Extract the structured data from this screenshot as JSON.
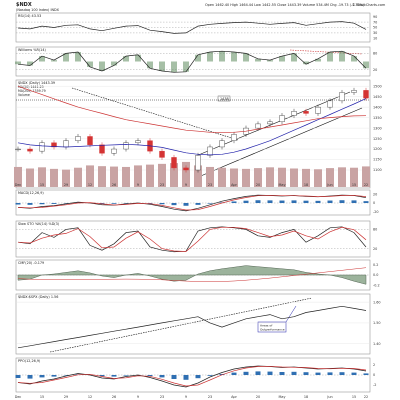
{
  "header": {
    "symbol": "$NDX",
    "descriptor": "(Nasdaq 100 Index) INDX",
    "stats": "Open 1462.40  High 1464.44  Low 1442.55  Close 1443.39  Volume 534.4M  Chg -19.73 (-1.35%)",
    "watermark": "© StockCharts.com"
  },
  "panels": {
    "rsi_label": "RSI(14) 43.53",
    "willr_label": "Williams %R(14)",
    "price_label": "$NDX (Daily) 1443.39",
    "ma_labels": [
      "MA(50) 1441.25",
      "MA(200) 1359.79"
    ],
    "volume_label": "Volume",
    "macd_label": "MACD(12,26,9)",
    "stoch_label": "Slow STO %K(14) %D(3)",
    "cmf_label": "CMF(20) -0.179",
    "ratio_label": "$NDX:$SPX (Daily) 1.56",
    "ppo_label": "PPO(12,26,9)",
    "annotation": "Areas of Outperformance",
    "price_marker": "1438"
  },
  "axes": {
    "x_ticks": [
      "Dec",
      "8",
      "15",
      "22",
      "29",
      "2009",
      "12",
      "20",
      "26",
      "Feb",
      "9",
      "17",
      "23",
      "Mar",
      "9",
      "16",
      "23",
      "30",
      "Apr",
      "13",
      "20",
      "27",
      "May",
      "11",
      "18",
      "26",
      "Jun",
      "8",
      "15",
      "22"
    ],
    "price_ticks": [
      "1500",
      "1450",
      "1400",
      "1350",
      "1300",
      "1250",
      "1200",
      "1150",
      "1100"
    ],
    "rsi_ticks": [
      "90",
      "70",
      "50",
      "30",
      "10"
    ],
    "osc_ticks": [
      "80",
      "20"
    ],
    "macd_ticks": [
      "20",
      "0",
      "-20"
    ],
    "cmf_ticks": [
      "0.2",
      "0.0",
      "-0.2"
    ],
    "ratio_ticks": [
      "1.60",
      "1.50",
      "1.40"
    ],
    "ppo_ticks": [
      "2",
      "0",
      "-2"
    ]
  },
  "chart_data": {
    "type": "line",
    "x": [
      "Dec",
      "8",
      "15",
      "22",
      "29",
      "2009",
      "12",
      "20",
      "26",
      "Feb",
      "9",
      "17",
      "23",
      "Mar",
      "9",
      "16",
      "23",
      "30",
      "Apr",
      "13",
      "20",
      "27",
      "May",
      "11",
      "18",
      "26",
      "Jun",
      "8",
      "15",
      "22"
    ],
    "series": [
      {
        "name": "$NDX",
        "values": [
          1200,
          1190,
          1230,
          1210,
          1240,
          1260,
          1220,
          1180,
          1200,
          1230,
          1240,
          1190,
          1160,
          1110,
          1100,
          1170,
          1210,
          1240,
          1270,
          1300,
          1320,
          1330,
          1360,
          1380,
          1370,
          1400,
          1430,
          1470,
          1480,
          1443
        ]
      },
      {
        "name": "MA(50)",
        "values": [
          1230,
          1220,
          1215,
          1212,
          1210,
          1212,
          1215,
          1218,
          1220,
          1222,
          1220,
          1215,
          1208,
          1195,
          1182,
          1175,
          1172,
          1175,
          1185,
          1200,
          1220,
          1240,
          1265,
          1290,
          1315,
          1340,
          1365,
          1390,
          1415,
          1441
        ]
      },
      {
        "name": "MA(200)",
        "values": [
          1500,
          1480,
          1460,
          1440,
          1420,
          1400,
          1385,
          1370,
          1355,
          1340,
          1330,
          1320,
          1310,
          1300,
          1290,
          1285,
          1280,
          1278,
          1280,
          1285,
          1295,
          1305,
          1315,
          1325,
          1335,
          1345,
          1350,
          1355,
          1358,
          1359
        ]
      },
      {
        "name": "RSI(14)",
        "values": [
          48,
          45,
          55,
          50,
          58,
          60,
          45,
          38,
          47,
          55,
          57,
          40,
          35,
          28,
          30,
          55,
          62,
          65,
          68,
          70,
          66,
          62,
          65,
          68,
          58,
          64,
          70,
          72,
          66,
          43
        ]
      },
      {
        "name": "$NDX:$SPX",
        "values": [
          1.38,
          1.39,
          1.4,
          1.41,
          1.42,
          1.43,
          1.44,
          1.45,
          1.46,
          1.47,
          1.48,
          1.49,
          1.5,
          1.51,
          1.52,
          1.53,
          1.5,
          1.48,
          1.5,
          1.52,
          1.53,
          1.54,
          1.52,
          1.53,
          1.55,
          1.56,
          1.57,
          1.58,
          1.57,
          1.56
        ]
      },
      {
        "name": "Volume",
        "values": [
          520,
          480,
          510,
          470,
          450,
          500,
          560,
          540,
          530,
          520,
          560,
          580,
          600,
          620,
          650,
          560,
          520,
          500,
          480,
          470,
          490,
          510,
          500,
          480,
          470,
          460,
          490,
          510,
          500,
          534
        ]
      },
      {
        "name": "Slow %K",
        "values": [
          40,
          35,
          70,
          55,
          80,
          85,
          30,
          15,
          35,
          70,
          75,
          25,
          15,
          10,
          12,
          75,
          85,
          88,
          85,
          80,
          60,
          55,
          70,
          80,
          40,
          60,
          85,
          88,
          70,
          25
        ]
      },
      {
        "name": "MACD",
        "values": [
          -10,
          -12,
          -8,
          -6,
          -2,
          2,
          0,
          -4,
          -5,
          -2,
          0,
          -3,
          -8,
          -14,
          -18,
          -12,
          -4,
          4,
          10,
          15,
          18,
          17,
          16,
          17,
          15,
          14,
          16,
          18,
          17,
          12
        ]
      },
      {
        "name": "CMF",
        "values": [
          -0.1,
          -0.08,
          0.0,
          0.02,
          0.05,
          0.08,
          0.04,
          -0.02,
          -0.05,
          0.0,
          0.03,
          -0.02,
          -0.08,
          -0.12,
          -0.1,
          0.02,
          0.08,
          0.12,
          0.15,
          0.18,
          0.16,
          0.14,
          0.12,
          0.1,
          0.05,
          0.02,
          0.0,
          -0.05,
          -0.12,
          -0.179
        ]
      },
      {
        "name": "PPO",
        "values": [
          -1.5,
          -1.8,
          -1.2,
          -0.8,
          -0.2,
          0.3,
          0.0,
          -0.6,
          -0.8,
          -0.3,
          0.0,
          -0.5,
          -1.2,
          -2.0,
          -2.4,
          -1.6,
          -0.4,
          0.5,
          1.2,
          1.6,
          1.8,
          1.7,
          1.5,
          1.6,
          1.4,
          1.2,
          1.3,
          1.4,
          1.2,
          0.8
        ]
      }
    ],
    "price_ylim": [
      1100,
      1520
    ],
    "rsi_ylim": [
      0,
      100
    ],
    "ratio_ylim": [
      1.36,
      1.62
    ]
  },
  "colors": {
    "price_candle_up": "#333333",
    "price_candle_down": "#d43333",
    "ma50": "#2222aa",
    "ma200": "#cc3333",
    "volume": "#c9a3a3",
    "indicator_line": "#222222",
    "signal_line": "#cc3333",
    "hist_pos": "#2f6fb2",
    "hist_neg": "#2f6fb2",
    "cmf_fill": "#9cb39c",
    "trendline": "#111111",
    "annotation_box": "#2222aa"
  }
}
